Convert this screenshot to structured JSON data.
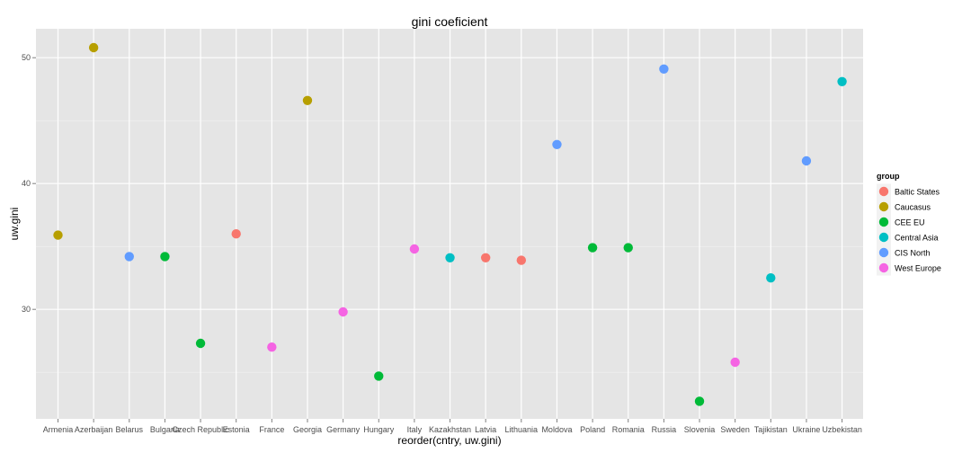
{
  "chart_data": {
    "type": "scatter",
    "title": "gini coeficient",
    "xlabel": "reorder(cntry, uw.gini)",
    "ylabel": "uw.gini",
    "ylim": [
      21.3,
      52.3
    ],
    "yticks": [
      30,
      40,
      50
    ],
    "grid": true,
    "legend": {
      "title": "group",
      "placement": "right",
      "entries": [
        {
          "name": "Baltic States",
          "color": "#F8766D"
        },
        {
          "name": "Caucasus",
          "color": "#B79F00"
        },
        {
          "name": "CEE EU",
          "color": "#00BA38"
        },
        {
          "name": "Central Asia",
          "color": "#00BFC4"
        },
        {
          "name": "CIS North",
          "color": "#619CFF"
        },
        {
          "name": "West Europe",
          "color": "#F564E3"
        }
      ]
    },
    "categories": [
      "Armenia",
      "Azerbaijan",
      "Belarus",
      "Bulgaria",
      "Czech Republic",
      "Estonia",
      "France",
      "Georgia",
      "Germany",
      "Hungary",
      "Italy",
      "Kazakhstan",
      "Latvia",
      "Lithuania",
      "Moldova",
      "Poland",
      "Romania",
      "Russia",
      "Slovenia",
      "Sweden",
      "Tajikistan",
      "Ukraine",
      "Uzbekistan"
    ],
    "points": [
      {
        "x": "Armenia",
        "y": 35.9,
        "group": "Caucasus"
      },
      {
        "x": "Azerbaijan",
        "y": 50.8,
        "group": "Caucasus"
      },
      {
        "x": "Belarus",
        "y": 34.2,
        "group": "CIS North"
      },
      {
        "x": "Bulgaria",
        "y": 34.2,
        "group": "CEE EU"
      },
      {
        "x": "Czech Republic",
        "y": 27.3,
        "group": "CEE EU"
      },
      {
        "x": "Estonia",
        "y": 36.0,
        "group": "Baltic States"
      },
      {
        "x": "France",
        "y": 27.0,
        "group": "West Europe"
      },
      {
        "x": "Georgia",
        "y": 46.6,
        "group": "Caucasus"
      },
      {
        "x": "Germany",
        "y": 29.8,
        "group": "West Europe"
      },
      {
        "x": "Hungary",
        "y": 24.7,
        "group": "CEE EU"
      },
      {
        "x": "Italy",
        "y": 34.8,
        "group": "West Europe"
      },
      {
        "x": "Kazakhstan",
        "y": 34.1,
        "group": "Central Asia"
      },
      {
        "x": "Latvia",
        "y": 34.1,
        "group": "Baltic States"
      },
      {
        "x": "Lithuania",
        "y": 33.9,
        "group": "Baltic States"
      },
      {
        "x": "Moldova",
        "y": 43.1,
        "group": "CIS North"
      },
      {
        "x": "Poland",
        "y": 34.9,
        "group": "CEE EU"
      },
      {
        "x": "Romania",
        "y": 34.9,
        "group": "CEE EU"
      },
      {
        "x": "Russia",
        "y": 49.1,
        "group": "CIS North"
      },
      {
        "x": "Slovenia",
        "y": 22.7,
        "group": "CEE EU"
      },
      {
        "x": "Sweden",
        "y": 25.8,
        "group": "West Europe"
      },
      {
        "x": "Tajikistan",
        "y": 32.5,
        "group": "Central Asia"
      },
      {
        "x": "Ukraine",
        "y": 41.8,
        "group": "CIS North"
      },
      {
        "x": "Uzbekistan",
        "y": 48.1,
        "group": "Central Asia"
      }
    ]
  }
}
